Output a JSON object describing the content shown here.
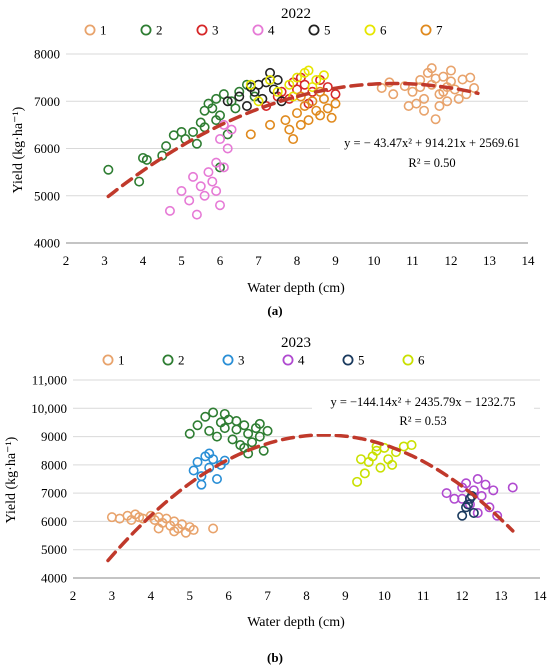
{
  "chart_data": [
    {
      "type": "scatter",
      "title": "2022",
      "xlabel": "Water depth (cm)",
      "ylabel": "Yield (kg·ha⁻¹)",
      "xlim": [
        2,
        14
      ],
      "ylim": [
        4000,
        8000
      ],
      "x_ticks": [
        "2",
        "3",
        "4",
        "5",
        "6",
        "7",
        "8",
        "9",
        "10",
        "11",
        "12",
        "13",
        "14"
      ],
      "y_ticks": [
        "4000",
        "5000",
        "6000",
        "7000",
        "8000"
      ],
      "grid": "horizontal",
      "legend_position": "top",
      "caption": "(a)",
      "equation": "y = − 43.47x² + 914.21x + 2569.61",
      "r_squared": "R² = 0.50",
      "fit": {
        "a": -43.47,
        "b": 914.21,
        "c": 2569.61,
        "x_range": [
          3.1,
          12.7
        ],
        "color": "#c0392b"
      },
      "series": [
        {
          "name": "1",
          "color": "#e8a36c",
          "points": [
            [
              10.2,
              7280
            ],
            [
              10.5,
              7150
            ],
            [
              10.8,
              7320
            ],
            [
              11.0,
              7200
            ],
            [
              11.2,
              7450
            ],
            [
              11.3,
              7050
            ],
            [
              11.4,
              7600
            ],
            [
              11.5,
              7350
            ],
            [
              11.6,
              7480
            ],
            [
              11.7,
              7150
            ],
            [
              11.8,
              7520
            ],
            [
              11.9,
              7300
            ],
            [
              12.0,
              7420
            ],
            [
              12.1,
              7250
            ],
            [
              12.2,
              7050
            ],
            [
              12.3,
              7460
            ],
            [
              12.5,
              7500
            ],
            [
              12.6,
              7280
            ],
            [
              11.1,
              6950
            ],
            [
              11.3,
              6800
            ],
            [
              11.6,
              6620
            ],
            [
              11.5,
              7700
            ],
            [
              11.9,
              7000
            ],
            [
              10.9,
              6900
            ],
            [
              12.4,
              7150
            ],
            [
              11.2,
              7300
            ],
            [
              11.7,
              6900
            ],
            [
              12.0,
              7650
            ],
            [
              10.4,
              7400
            ],
            [
              11.8,
              7200
            ]
          ]
        },
        {
          "name": "2",
          "color": "#2e7d32",
          "points": [
            [
              3.1,
              5550
            ],
            [
              3.9,
              5300
            ],
            [
              4.0,
              5800
            ],
            [
              4.1,
              5760
            ],
            [
              4.5,
              5850
            ],
            [
              4.6,
              6050
            ],
            [
              4.8,
              6280
            ],
            [
              5.0,
              6350
            ],
            [
              5.1,
              6200
            ],
            [
              5.3,
              6350
            ],
            [
              5.5,
              6550
            ],
            [
              5.6,
              6800
            ],
            [
              5.7,
              6950
            ],
            [
              5.8,
              6850
            ],
            [
              5.9,
              7050
            ],
            [
              6.0,
              6700
            ],
            [
              6.1,
              7150
            ],
            [
              6.3,
              7000
            ],
            [
              6.5,
              7200
            ],
            [
              6.7,
              7350
            ],
            [
              6.9,
              7100
            ],
            [
              5.6,
              6450
            ],
            [
              5.9,
              6600
            ],
            [
              6.2,
              6300
            ],
            [
              5.4,
              6100
            ],
            [
              6.4,
              6850
            ],
            [
              6.0,
              5600
            ]
          ]
        },
        {
          "name": "3",
          "color": "#d62728",
          "points": [
            [
              7.2,
              6900
            ],
            [
              7.5,
              7100
            ],
            [
              7.8,
              7050
            ],
            [
              8.0,
              7250
            ],
            [
              8.2,
              7350
            ],
            [
              8.4,
              7200
            ],
            [
              8.6,
              7450
            ],
            [
              8.8,
              7300
            ],
            [
              9.0,
              7150
            ],
            [
              8.3,
              6950
            ],
            [
              7.9,
              7400
            ],
            [
              8.1,
              7500
            ],
            [
              7.6,
              7200
            ]
          ]
        },
        {
          "name": "4",
          "color": "#e67ad6",
          "points": [
            [
              4.7,
              4680
            ],
            [
              5.0,
              5100
            ],
            [
              5.2,
              4900
            ],
            [
              5.3,
              5400
            ],
            [
              5.5,
              5200
            ],
            [
              5.6,
              5000
            ],
            [
              5.8,
              5300
            ],
            [
              5.9,
              5700
            ],
            [
              6.0,
              4800
            ],
            [
              6.1,
              5600
            ],
            [
              6.2,
              6000
            ],
            [
              6.0,
              6200
            ],
            [
              5.7,
              5500
            ],
            [
              5.4,
              4600
            ],
            [
              5.9,
              5100
            ],
            [
              6.3,
              6400
            ],
            [
              6.1,
              6500
            ]
          ]
        },
        {
          "name": "5",
          "color": "#222222",
          "points": [
            [
              6.2,
              7000
            ],
            [
              6.5,
              7100
            ],
            [
              6.7,
              6900
            ],
            [
              6.9,
              7200
            ],
            [
              7.0,
              7350
            ],
            [
              7.1,
              7050
            ],
            [
              7.2,
              7400
            ],
            [
              7.3,
              7600
            ],
            [
              7.4,
              7250
            ],
            [
              7.5,
              7450
            ],
            [
              6.8,
              7300
            ],
            [
              7.6,
              7000
            ]
          ]
        },
        {
          "name": "6",
          "color": "#e6e600",
          "points": [
            [
              6.8,
              7350
            ],
            [
              7.0,
              7000
            ],
            [
              7.3,
              7450
            ],
            [
              7.5,
              7200
            ],
            [
              7.8,
              7350
            ],
            [
              8.0,
              7500
            ],
            [
              8.2,
              7600
            ],
            [
              8.5,
              7450
            ],
            [
              8.7,
              7550
            ],
            [
              8.4,
              7300
            ],
            [
              7.9,
              7100
            ],
            [
              8.3,
              7650
            ]
          ]
        },
        {
          "name": "7",
          "color": "#e08a1e",
          "points": [
            [
              6.8,
              6300
            ],
            [
              7.3,
              6500
            ],
            [
              7.7,
              6600
            ],
            [
              7.8,
              6400
            ],
            [
              8.0,
              6750
            ],
            [
              8.1,
              6500
            ],
            [
              8.2,
              6900
            ],
            [
              8.3,
              6600
            ],
            [
              8.4,
              7000
            ],
            [
              8.5,
              6800
            ],
            [
              8.6,
              6700
            ],
            [
              8.7,
              7050
            ],
            [
              8.8,
              6850
            ],
            [
              9.0,
              6950
            ],
            [
              8.1,
              7100
            ],
            [
              8.9,
              6650
            ],
            [
              7.9,
              6200
            ],
            [
              8.6,
              7200
            ]
          ]
        }
      ]
    },
    {
      "type": "scatter",
      "title": "2023",
      "xlabel": "Water depth (cm)",
      "ylabel": "Yield (kg·ha⁻¹)",
      "xlim": [
        2,
        14
      ],
      "ylim": [
        4000,
        11000
      ],
      "x_ticks": [
        "2",
        "3",
        "4",
        "5",
        "6",
        "7",
        "8",
        "9",
        "10",
        "11",
        "12",
        "13",
        "14"
      ],
      "y_ticks": [
        "4000",
        "5000",
        "6000",
        "7000",
        "8000",
        "9000",
        "10,000",
        "11,000"
      ],
      "grid": "horizontal",
      "legend_position": "top",
      "caption": "(b)",
      "equation": "y = −144.14x² + 2435.79x − 1232.75",
      "r_squared": "R² = 0.53",
      "fit": {
        "a": -144.14,
        "b": 2435.79,
        "c": -1232.75,
        "x_range": [
          2.9,
          13.3
        ],
        "color": "#c0392b"
      },
      "series": [
        {
          "name": "1",
          "color": "#e8a36c",
          "points": [
            [
              3.0,
              6150
            ],
            [
              3.2,
              6100
            ],
            [
              3.4,
              6200
            ],
            [
              3.5,
              6050
            ],
            [
              3.7,
              6150
            ],
            [
              3.8,
              6100
            ],
            [
              4.0,
              6200
            ],
            [
              4.1,
              6050
            ],
            [
              4.2,
              6150
            ],
            [
              4.3,
              5950
            ],
            [
              4.4,
              6100
            ],
            [
              4.5,
              5850
            ],
            [
              4.6,
              6000
            ],
            [
              4.7,
              5750
            ],
            [
              4.8,
              5900
            ],
            [
              4.9,
              5600
            ],
            [
              5.0,
              5800
            ],
            [
              5.1,
              5700
            ],
            [
              5.6,
              5750
            ],
            [
              4.2,
              5750
            ],
            [
              3.6,
              6250
            ],
            [
              4.6,
              5650
            ]
          ]
        },
        {
          "name": "2",
          "color": "#2e7d32",
          "points": [
            [
              5.0,
              9100
            ],
            [
              5.2,
              9400
            ],
            [
              5.4,
              9700
            ],
            [
              5.5,
              9200
            ],
            [
              5.6,
              9850
            ],
            [
              5.7,
              9000
            ],
            [
              5.8,
              9500
            ],
            [
              5.9,
              9300
            ],
            [
              6.0,
              9600
            ],
            [
              6.1,
              8900
            ],
            [
              6.2,
              9250
            ],
            [
              6.3,
              8700
            ],
            [
              6.4,
              9400
            ],
            [
              6.5,
              9100
            ],
            [
              6.6,
              8800
            ],
            [
              6.7,
              9300
            ],
            [
              6.8,
              9000
            ],
            [
              6.9,
              8500
            ],
            [
              7.0,
              9200
            ],
            [
              6.5,
              8400
            ],
            [
              5.9,
              9800
            ],
            [
              6.2,
              9550
            ],
            [
              6.8,
              9450
            ],
            [
              6.4,
              8600
            ]
          ]
        },
        {
          "name": "3",
          "color": "#2a8fd6",
          "points": [
            [
              5.1,
              7800
            ],
            [
              5.2,
              8100
            ],
            [
              5.3,
              7600
            ],
            [
              5.4,
              8300
            ],
            [
              5.5,
              7900
            ],
            [
              5.6,
              8200
            ],
            [
              5.7,
              7500
            ],
            [
              5.8,
              8000
            ],
            [
              5.5,
              8400
            ],
            [
              5.3,
              7300
            ],
            [
              5.9,
              8150
            ]
          ]
        },
        {
          "name": "4",
          "color": "#b04ad0",
          "points": [
            [
              11.6,
              7000
            ],
            [
              11.8,
              6800
            ],
            [
              12.0,
              7200
            ],
            [
              12.1,
              7350
            ],
            [
              12.2,
              6600
            ],
            [
              12.3,
              7100
            ],
            [
              12.4,
              7500
            ],
            [
              12.5,
              6900
            ],
            [
              12.6,
              7300
            ],
            [
              12.7,
              6500
            ],
            [
              12.8,
              7100
            ],
            [
              12.9,
              6200
            ],
            [
              13.3,
              7200
            ],
            [
              12.4,
              6300
            ],
            [
              12.0,
              6800
            ]
          ]
        },
        {
          "name": "5",
          "color": "#1a3a5e",
          "points": [
            [
              12.0,
              6200
            ],
            [
              12.1,
              6500
            ],
            [
              12.2,
              6800
            ],
            [
              12.3,
              6300
            ],
            [
              12.25,
              6900
            ],
            [
              12.15,
              6600
            ]
          ]
        },
        {
          "name": "6",
          "color": "#c9e000",
          "points": [
            [
              9.3,
              7400
            ],
            [
              9.5,
              7700
            ],
            [
              9.6,
              8100
            ],
            [
              9.7,
              8300
            ],
            [
              9.8,
              8500
            ],
            [
              9.9,
              7900
            ],
            [
              10.0,
              8600
            ],
            [
              10.1,
              8200
            ],
            [
              10.3,
              8450
            ],
            [
              10.5,
              8650
            ],
            [
              10.7,
              8700
            ],
            [
              9.4,
              8200
            ],
            [
              10.2,
              8000
            ],
            [
              9.8,
              8650
            ]
          ]
        }
      ]
    }
  ]
}
